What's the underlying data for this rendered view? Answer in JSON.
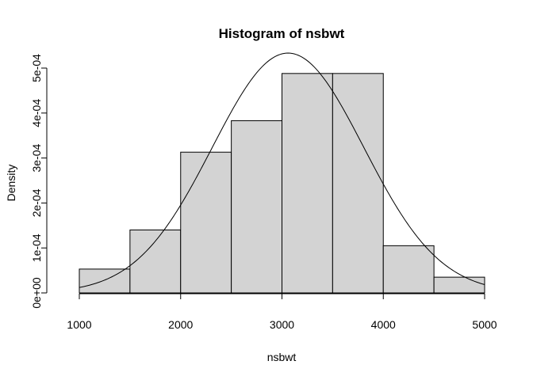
{
  "chart_data": {
    "type": "bar",
    "title": "Histogram of nsbwt",
    "xlabel": "nsbwt",
    "ylabel": "Density",
    "xlim": [
      1000,
      5000
    ],
    "ylim": [
      0,
      0.0005
    ],
    "bin_edges": [
      1000,
      1500,
      2000,
      2500,
      3000,
      3500,
      4000,
      4500,
      5000
    ],
    "bars": [
      {
        "x0": 1000,
        "x1": 1500,
        "density": 5.3e-05
      },
      {
        "x0": 1500,
        "x1": 2000,
        "density": 0.00014
      },
      {
        "x0": 2000,
        "x1": 2500,
        "density": 0.000313
      },
      {
        "x0": 2500,
        "x1": 3000,
        "density": 0.000383
      },
      {
        "x0": 3000,
        "x1": 3500,
        "density": 0.000488
      },
      {
        "x0": 3500,
        "x1": 4000,
        "density": 0.000488
      },
      {
        "x0": 4000,
        "x1": 4500,
        "density": 0.000105
      },
      {
        "x0": 4500,
        "x1": 5000,
        "density": 3.5e-05
      }
    ],
    "x_ticks": [
      {
        "value": 1000,
        "label": "1000"
      },
      {
        "value": 2000,
        "label": "2000"
      },
      {
        "value": 3000,
        "label": "3000"
      },
      {
        "value": 4000,
        "label": "4000"
      },
      {
        "value": 5000,
        "label": "5000"
      }
    ],
    "y_ticks": [
      {
        "value": 0,
        "label": "0e+00"
      },
      {
        "value": 0.0001,
        "label": "1e-04"
      },
      {
        "value": 0.0002,
        "label": "2e-04"
      },
      {
        "value": 0.0003,
        "label": "3e-04"
      },
      {
        "value": 0.0004,
        "label": "4e-04"
      },
      {
        "value": 0.0005,
        "label": "5e-04"
      }
    ],
    "density_curve": {
      "type": "normal",
      "mean": 3060,
      "sd": 748
    },
    "grid": false
  }
}
